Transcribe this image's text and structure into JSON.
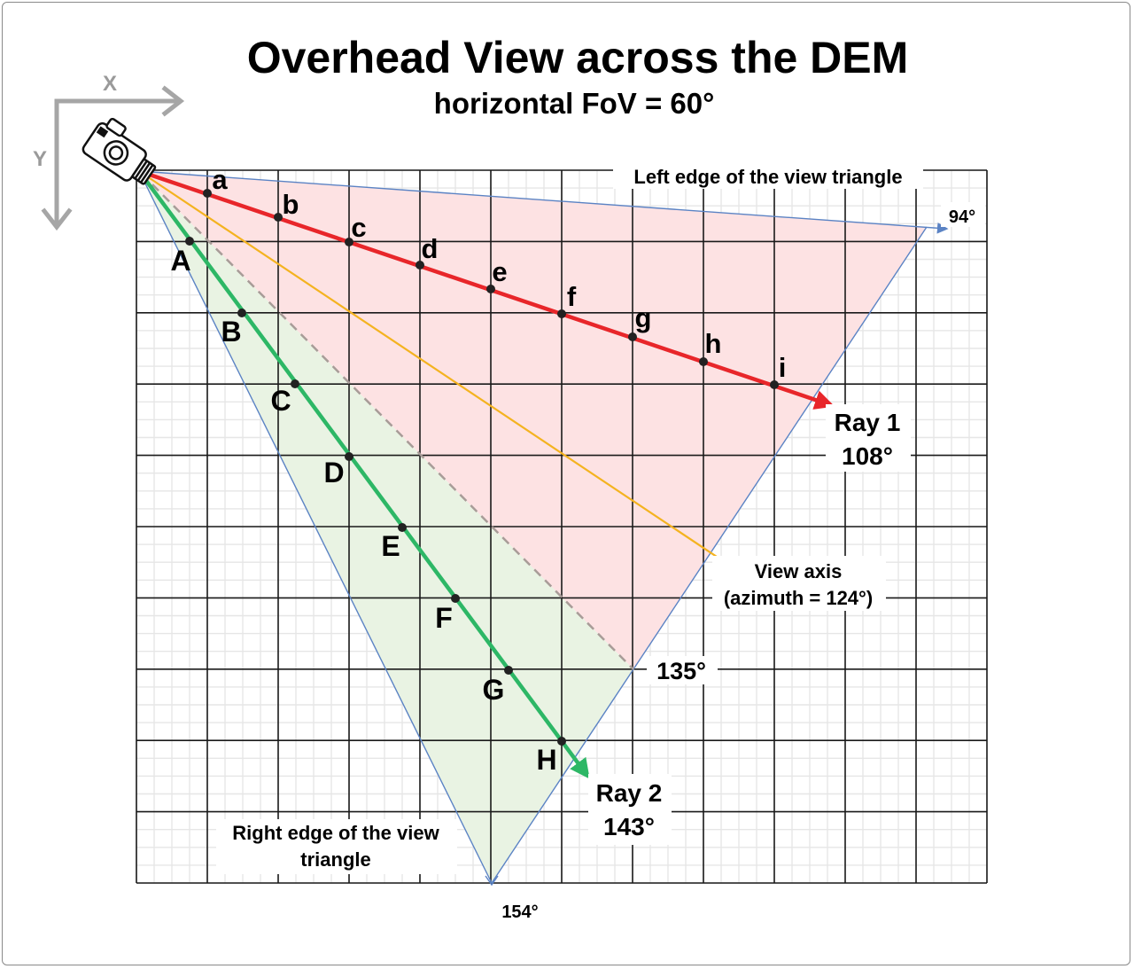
{
  "title": "Overhead View across the DEM",
  "subtitle": "horizontal FoV = 60°",
  "axes": {
    "x_label": "X",
    "y_label": "Y"
  },
  "camera_icon": "camera-icon",
  "annotations": {
    "left_edge": "Left edge of the view triangle",
    "left_edge_azimuth": "94°",
    "ray1_name": "Ray 1",
    "ray1_azimuth": "108°",
    "view_axis_line1": "View axis",
    "view_axis_line2": "(azimuth = 124°)",
    "azimuth_135": "135°",
    "ray2_name": "Ray 2",
    "ray2_azimuth": "143°",
    "right_edge_line1": "Right edge of the view",
    "right_edge_line2": "triangle",
    "right_edge_azimuth": "154°"
  },
  "ray1_points": [
    "a",
    "b",
    "c",
    "d",
    "e",
    "f",
    "g",
    "h",
    "i"
  ],
  "ray2_points": [
    "A",
    "B",
    "C",
    "D",
    "E",
    "F",
    "G",
    "H"
  ],
  "colors": {
    "ray1": "#e8262a",
    "ray2": "#2db766",
    "view_axis": "#f4b320",
    "edges": "#5b83c4",
    "dashed_135": "#a89c98",
    "fill_red": "#fde2e3",
    "fill_green": "#e9f3e3",
    "grid_major": "#1a1a1a",
    "grid_minor": "#e6e6e6",
    "axis_arrows": "#a6a6a6"
  }
}
